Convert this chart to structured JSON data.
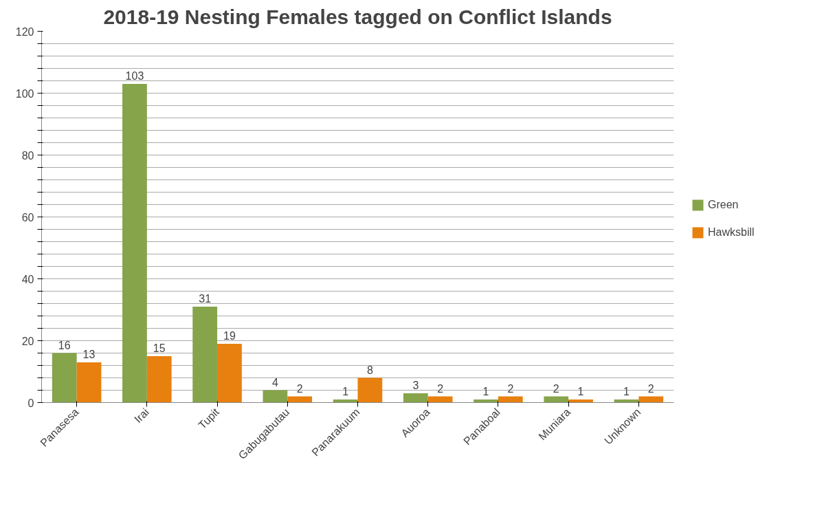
{
  "chart_data": {
    "type": "bar",
    "title": "2018-19 Nesting Females tagged on Conflict Islands",
    "categories": [
      "Panasesa",
      "Irai",
      "Tupit",
      "Gabugabutau",
      "Panarakuum",
      "Auoroa",
      "Panaboal",
      "Muniara",
      "Unknown"
    ],
    "series": [
      {
        "name": "Green",
        "color": "#86a44a",
        "values": [
          16,
          103,
          31,
          4,
          1,
          3,
          1,
          2,
          1
        ]
      },
      {
        "name": "Hawksbill",
        "color": "#e8800f",
        "values": [
          13,
          15,
          19,
          2,
          8,
          2,
          2,
          1,
          2
        ]
      }
    ],
    "ylim": [
      0,
      120
    ],
    "yticks": [
      0,
      {
        "value": 4,
        "label": null
      },
      {
        "value": 8,
        "label": null
      },
      {
        "value": 12,
        "label": null
      },
      {
        "value": 16,
        "label": null
      },
      20,
      {
        "value": 24,
        "label": null
      },
      {
        "value": 28,
        "label": null
      },
      {
        "value": 32,
        "label": null
      },
      {
        "value": 36,
        "label": null
      },
      40,
      {
        "value": 44,
        "label": null
      },
      {
        "value": 48,
        "label": null
      },
      {
        "value": 52,
        "label": null
      },
      {
        "value": 56,
        "label": null
      },
      60,
      {
        "value": 64,
        "label": null
      },
      {
        "value": 68,
        "label": null
      },
      {
        "value": 72,
        "label": null
      },
      {
        "value": 76,
        "label": null
      },
      80,
      {
        "value": 84,
        "label": null
      },
      {
        "value": 88,
        "label": null
      },
      {
        "value": 92,
        "label": null
      },
      {
        "value": 96,
        "label": null
      },
      100,
      {
        "value": 104,
        "label": null
      },
      {
        "value": 108,
        "label": null
      },
      {
        "value": 112,
        "label": null
      },
      {
        "value": 116,
        "label": null
      },
      120
    ],
    "grid": "y",
    "legend": "right",
    "data_labels": true
  }
}
